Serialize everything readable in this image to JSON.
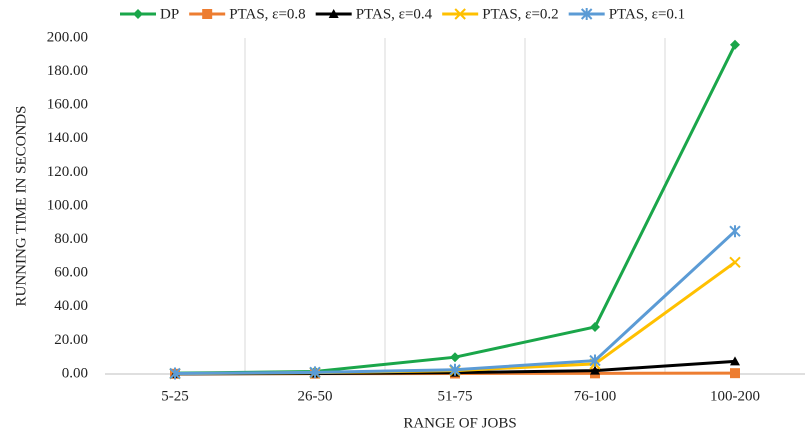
{
  "chart_data": {
    "type": "line",
    "xlabel": "RANGE OF JOBS",
    "ylabel": "RUNNING TIME IN SECONDS",
    "categories": [
      "5-25",
      "26-50",
      "51-75",
      "76-100",
      "100-200"
    ],
    "series": [
      {
        "name": "DP",
        "color": "#1aa64a",
        "marker": "diamond",
        "values": [
          0.5,
          1.5,
          10,
          28,
          196
        ]
      },
      {
        "name": "PTAS, ε=0.8",
        "color": "#ed7d31",
        "marker": "square",
        "values": [
          0.1,
          0.2,
          0.3,
          0.4,
          0.5
        ]
      },
      {
        "name": "PTAS, ε=0.4",
        "color": "#000000",
        "marker": "triangle",
        "values": [
          0.1,
          0.3,
          0.8,
          2,
          7.5
        ]
      },
      {
        "name": "PTAS, ε=0.2",
        "color": "#ffc000",
        "marker": "x",
        "values": [
          0.2,
          0.8,
          2,
          6,
          66.5
        ]
      },
      {
        "name": "PTAS, ε=0.1",
        "color": "#5b9bd5",
        "marker": "star",
        "values": [
          0.3,
          1,
          2.5,
          8,
          85
        ]
      }
    ],
    "ylim": [
      0,
      200
    ],
    "yticks": [
      {
        "value": 0,
        "label": "0.00"
      },
      {
        "value": 20,
        "label": "20.00"
      },
      {
        "value": 40,
        "label": "40.00"
      },
      {
        "value": 60,
        "label": "60.00"
      },
      {
        "value": 80,
        "label": "80.00"
      },
      {
        "value": 100,
        "label": "100.00"
      },
      {
        "value": 120,
        "label": "120.00"
      },
      {
        "value": 140,
        "label": "140.00"
      },
      {
        "value": 160,
        "label": "160.00"
      },
      {
        "value": 180,
        "label": "180.00"
      },
      {
        "value": 200,
        "label": "200.00"
      }
    ],
    "legend": "top"
  }
}
